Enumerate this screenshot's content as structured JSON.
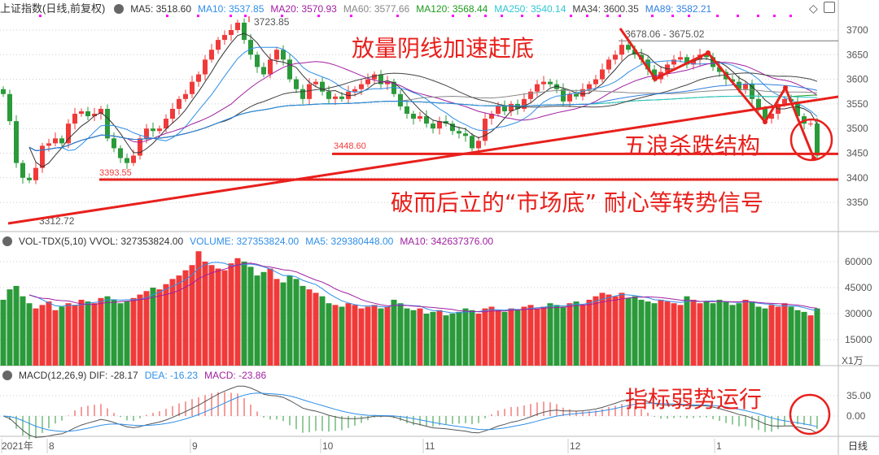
{
  "price_header": {
    "title": "上证指数(日线,前复权)",
    "items": [
      {
        "label": "MA5: 3518.60",
        "color": "#333333"
      },
      {
        "label": "MA10: 3537.85",
        "color": "#2f8fe8"
      },
      {
        "label": "MA20: 3570.93",
        "color": "#a020a0"
      },
      {
        "label": "MA60: 3577.66",
        "color": "#888888"
      },
      {
        "label": "MA120: 3568.44",
        "color": "#1e9a1e"
      },
      {
        "label": "MA250: 3540.14",
        "color": "#30c8d0"
      },
      {
        "label": "MA34: 3600.35",
        "color": "#444444"
      },
      {
        "label": "MA89: 3582.21",
        "color": "#2f7fe0"
      }
    ]
  },
  "vol_header": {
    "items": [
      {
        "label": "VOL-TDX(5,10)  VVOL: 327353824.00",
        "color": "#333333"
      },
      {
        "label": "VOLUME: 327353824.00",
        "color": "#2f8fe8"
      },
      {
        "label": "MA5: 329380448.00",
        "color": "#2f8fe8"
      },
      {
        "label": "MA10: 342637376.00",
        "color": "#a020a0"
      }
    ]
  },
  "macd_header": {
    "items": [
      {
        "label": "MACD(12,26,9)  DIF: -28.17",
        "color": "#333333"
      },
      {
        "label": "DEA: -16.23",
        "color": "#2f8fe8"
      },
      {
        "label": "MACD: -23.86",
        "color": "#a020a0"
      }
    ]
  },
  "toolbar": {
    "icons": [
      "diamond-icon",
      "panel-toggle-icon"
    ]
  },
  "chart_data": [
    {
      "type": "candlestick",
      "title": "上证指数(日线,前复权)",
      "yticks": [
        3700,
        3650,
        3600,
        3550,
        3500,
        3450,
        3400,
        3350
      ],
      "ylim": [
        3300,
        3740
      ],
      "closes": [
        3570,
        3515,
        3430,
        3400,
        3395,
        3420,
        3465,
        3470,
        3480,
        3470,
        3510,
        3530,
        3535,
        3525,
        3530,
        3540,
        3480,
        3460,
        3440,
        3430,
        3445,
        3480,
        3500,
        3495,
        3500,
        3520,
        3540,
        3560,
        3570,
        3595,
        3610,
        3640,
        3660,
        3680,
        3690,
        3700,
        3715,
        3680,
        3650,
        3625,
        3610,
        3640,
        3660,
        3640,
        3600,
        3580,
        3560,
        3590,
        3595,
        3575,
        3560,
        3565,
        3560,
        3575,
        3580,
        3590,
        3600,
        3610,
        3590,
        3595,
        3570,
        3545,
        3530,
        3520,
        3525,
        3510,
        3500,
        3515,
        3510,
        3495,
        3490,
        3485,
        3460,
        3475,
        3520,
        3530,
        3545,
        3535,
        3550,
        3540,
        3560,
        3575,
        3590,
        3595,
        3590,
        3580,
        3555,
        3570,
        3565,
        3580,
        3590,
        3600,
        3620,
        3640,
        3650,
        3670,
        3660,
        3650,
        3640,
        3620,
        3600,
        3615,
        3630,
        3640,
        3645,
        3630,
        3640,
        3650,
        3645,
        3625,
        3615,
        3600,
        3595,
        3580,
        3590,
        3560,
        3540,
        3520,
        3530,
        3550,
        3560,
        3555,
        3525,
        3510,
        3510,
        3445
      ],
      "labels": {
        "high1": "3723.85",
        "high2": "3678.06 - 3675.02",
        "support1": "3448.60",
        "support2": "3393.55",
        "low": "3312.72"
      },
      "support_levels": [
        3448.6,
        3393.55
      ],
      "resistance_level": 3678.06
    },
    {
      "type": "bar",
      "title": "VOL-TDX(5,10)",
      "yticks": [
        60000,
        45000,
        30000,
        15000
      ],
      "unit_label": "X1万",
      "values": [
        38000,
        44000,
        46000,
        40000,
        36000,
        33000,
        35000,
        37000,
        32000,
        34000,
        36000,
        35000,
        38000,
        37000,
        36000,
        39000,
        40000,
        38000,
        36000,
        37000,
        39000,
        41000,
        43000,
        45000,
        44000,
        47000,
        50000,
        52000,
        55000,
        58000,
        66000,
        60000,
        58000,
        56000,
        55000,
        59000,
        62000,
        60000,
        57000,
        52000,
        54000,
        56000,
        50000,
        48000,
        52000,
        50000,
        46000,
        44000,
        42000,
        40000,
        36000,
        35000,
        34000,
        36000,
        35000,
        33000,
        34000,
        35000,
        33000,
        34000,
        38000,
        36000,
        33000,
        32000,
        33000,
        30000,
        31000,
        32000,
        29000,
        30000,
        31000,
        33000,
        32000,
        30000,
        33000,
        34000,
        32000,
        31000,
        33000,
        32000,
        34000,
        35000,
        33000,
        34000,
        36000,
        35000,
        34000,
        36000,
        37000,
        35000,
        38000,
        40000,
        42000,
        41000,
        40000,
        42000,
        39000,
        40000,
        38000,
        37000,
        36000,
        38000,
        37000,
        36000,
        35000,
        40000,
        38000,
        36000,
        37000,
        36000,
        38000,
        37000,
        35000,
        36000,
        38000,
        37000,
        34000,
        33000,
        35000,
        34000,
        36000,
        34000,
        32000,
        31000,
        29000,
        33000
      ]
    },
    {
      "type": "macd",
      "title": "MACD(12,26,9)",
      "yticks": [
        "35.00",
        "0.00"
      ]
    }
  ],
  "xaxis": {
    "ticks": [
      "2021年",
      "8",
      "9",
      "10",
      "11",
      "12",
      "1"
    ],
    "period": "日线"
  },
  "annotations": {
    "a1": "放量阴线加速赶底",
    "a2": "五浪杀跌结构",
    "a3": "破而后立的“市场底” 耐心等转势信号",
    "a4": "指标弱势运行"
  },
  "colors": {
    "up": "#f03a3a",
    "down": "#2a9a3a",
    "annotation": "#e8201c",
    "marker": "#ff00ff"
  }
}
